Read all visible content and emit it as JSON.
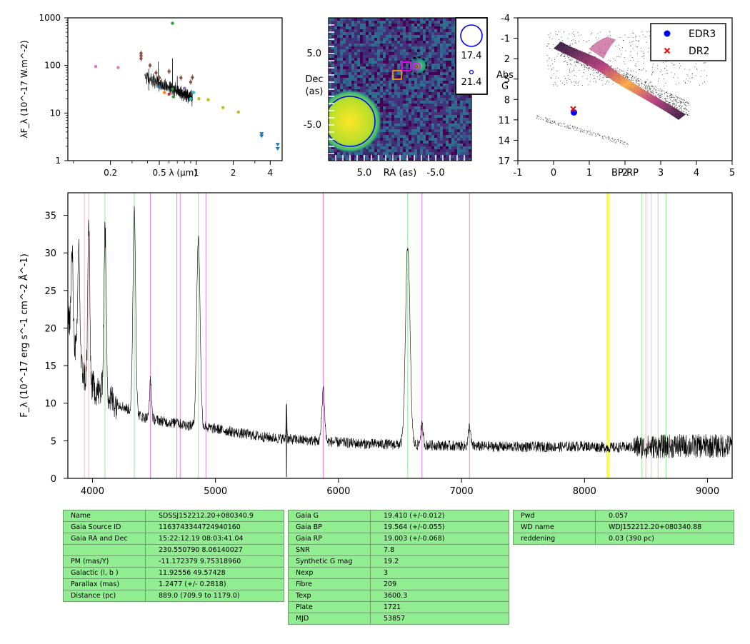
{
  "chart_data": [
    {
      "type": "scatter",
      "panel": "sed",
      "xlabel": "λ (μm)",
      "ylabel": "λF_λ (10^-17 W.m^-2)",
      "x_scale": "log",
      "y_scale": "log",
      "xlim": [
        0.09,
        5.0
      ],
      "ylim": [
        1,
        1000
      ],
      "x_ticks": [
        "0.2",
        "0.5",
        "1",
        "2",
        "4"
      ],
      "y_ticks": [
        "1",
        "10",
        "100",
        "1000"
      ],
      "points": [
        {
          "x": 0.152,
          "y": 95,
          "color": "#e377c2"
        },
        {
          "x": 0.231,
          "y": 90,
          "color": "#e377c2"
        },
        {
          "x": 0.355,
          "y": 180,
          "color": "#8c564b"
        },
        {
          "x": 0.355,
          "y": 160,
          "color": "#8c564b"
        },
        {
          "x": 0.355,
          "y": 140,
          "color": "#8c564b"
        },
        {
          "x": 0.42,
          "y": 100,
          "color": "#8c564b"
        },
        {
          "x": 0.47,
          "y": 70,
          "color": "#8c564b"
        },
        {
          "x": 0.5,
          "y": 55,
          "color": "#8c564b"
        },
        {
          "x": 0.5,
          "y": 35,
          "color": "#1f77b4"
        },
        {
          "x": 0.55,
          "y": 27,
          "color": "#ff7f0e"
        },
        {
          "x": 0.6,
          "y": 75,
          "color": "#8c564b"
        },
        {
          "x": 0.6,
          "y": 25,
          "color": "#d62728"
        },
        {
          "x": 0.64,
          "y": 770,
          "color": "#2ca02c"
        },
        {
          "x": 0.64,
          "y": 32,
          "color": "#2ca02c"
        },
        {
          "x": 0.65,
          "y": 22,
          "color": "#2ca02c"
        },
        {
          "x": 0.75,
          "y": 55,
          "color": "#8c564b"
        },
        {
          "x": 0.8,
          "y": 33,
          "color": "#9467bd"
        },
        {
          "x": 0.9,
          "y": 45,
          "color": "#8c564b"
        },
        {
          "x": 0.9,
          "y": 20,
          "color": "#17becf"
        },
        {
          "x": 0.93,
          "y": 56,
          "color": "#8c564b"
        },
        {
          "x": 0.95,
          "y": 27,
          "color": "#17becf"
        },
        {
          "x": 1.05,
          "y": 20,
          "color": "#bcbd22"
        },
        {
          "x": 1.25,
          "y": 19,
          "color": "#bcbd22"
        },
        {
          "x": 1.65,
          "y": 13,
          "color": "#bcbd22"
        },
        {
          "x": 2.2,
          "y": 10.5,
          "color": "#bcbd22"
        }
      ],
      "upper_limits": [
        {
          "x": 3.4,
          "y": 3.7,
          "color": "#1f77b4"
        },
        {
          "x": 3.4,
          "y": 3.3,
          "color": "#1f77b4"
        },
        {
          "x": 4.6,
          "y": 2.2,
          "color": "#1f77b4"
        },
        {
          "x": 4.6,
          "y": 1.8,
          "color": "#1f77b4"
        }
      ]
    },
    {
      "type": "heatmap",
      "panel": "image",
      "xlabel": "RA (as)",
      "ylabel": "Dec\n(as)",
      "xlim": [
        10.0,
        -10.0
      ],
      "ylim": [
        -10.0,
        10.0
      ],
      "x_ticks": [
        "5.0",
        "-5.0"
      ],
      "y_ticks": [
        "5.0",
        "-5.0"
      ],
      "legend": [
        "17.4",
        "21.4"
      ],
      "markers": [
        {
          "kind": "bright source",
          "x": 7.0,
          "y": -4.5,
          "color": "#fde725"
        },
        {
          "kind": "circle",
          "x": -3.3,
          "y": 3.3,
          "color": "#0000ff"
        },
        {
          "kind": "dashed circle",
          "x": -2.5,
          "y": 3.3,
          "color": "#000000"
        },
        {
          "kind": "square",
          "x": 0.4,
          "y": 2.0,
          "color": "#ffa500"
        },
        {
          "kind": "square",
          "x": -0.9,
          "y": 3.2,
          "color": "#ff00ff"
        },
        {
          "kind": "circle",
          "x": -2.3,
          "y": 3.2,
          "color": "#ff00ff"
        }
      ]
    },
    {
      "type": "scatter",
      "panel": "hr",
      "xlabel": "BP-RP",
      "ylabel": "Abs\nG",
      "xlim": [
        -1,
        5
      ],
      "ylim": [
        17,
        -4
      ],
      "x_ticks": [
        "-1",
        "0",
        "1",
        "2",
        "3",
        "4",
        "5"
      ],
      "y_ticks": [
        "-4",
        "-1",
        "2",
        "5",
        "8",
        "11",
        "14",
        "17"
      ],
      "legend": [
        "EDR3",
        "DR2"
      ],
      "series": [
        {
          "name": "EDR3",
          "color": "#0000ff",
          "x": [
            0.57
          ],
          "y": [
            9.9
          ]
        },
        {
          "name": "DR2",
          "color": "#ff0000",
          "x": [
            0.55
          ],
          "y": [
            9.4
          ]
        }
      ]
    },
    {
      "type": "line",
      "panel": "spectrum",
      "ylabel": "F_λ (10^-17 erg s^-1 cm^-2 Å^-1)",
      "xlim": [
        3800,
        9200
      ],
      "ylim": [
        0,
        38
      ],
      "x_ticks": [
        "4000",
        "5000",
        "6000",
        "7000",
        "8000",
        "9000"
      ],
      "y_ticks": [
        "0",
        "5",
        "10",
        "15",
        "20",
        "25",
        "30",
        "35"
      ],
      "continuum": [
        [
          3800,
          22
        ],
        [
          3850,
          18
        ],
        [
          3900,
          15
        ],
        [
          3950,
          13
        ],
        [
          4050,
          11.5
        ],
        [
          4200,
          10
        ],
        [
          4400,
          8.2
        ],
        [
          4600,
          7.5
        ],
        [
          4800,
          7
        ],
        [
          5000,
          6.6
        ],
        [
          5200,
          6
        ],
        [
          5400,
          5.5
        ],
        [
          5600,
          5.2
        ],
        [
          5800,
          5
        ],
        [
          6000,
          4.8
        ],
        [
          6200,
          4.6
        ],
        [
          6500,
          4.5
        ],
        [
          6800,
          4.4
        ],
        [
          7000,
          4.3
        ],
        [
          7400,
          4.2
        ],
        [
          7800,
          4.2
        ],
        [
          8000,
          4.3
        ],
        [
          8200,
          4.1
        ],
        [
          8500,
          4.2
        ],
        [
          8800,
          4.3
        ],
        [
          9200,
          4.3
        ]
      ],
      "emission_lines": [
        {
          "x": 3835,
          "peak": 30,
          "width": 8
        },
        {
          "x": 3889,
          "peak": 31,
          "width": 8
        },
        {
          "x": 3970,
          "peak": 34,
          "width": 8
        },
        {
          "x": 4102,
          "peak": 33,
          "width": 10
        },
        {
          "x": 4340,
          "peak": 36,
          "width": 11
        },
        {
          "x": 4472,
          "peak": 13,
          "width": 8
        },
        {
          "x": 4686,
          "peak": 8,
          "width": 8
        },
        {
          "x": 4861,
          "peak": 32,
          "width": 14
        },
        {
          "x": 4922,
          "peak": 7,
          "width": 6
        },
        {
          "x": 5577,
          "peak": 13,
          "width": 3
        },
        {
          "x": 5876,
          "peak": 12,
          "width": 11
        },
        {
          "x": 6563,
          "peak": 31,
          "width": 18
        },
        {
          "x": 6678,
          "peak": 7,
          "width": 10
        },
        {
          "x": 7065,
          "peak": 7,
          "width": 9
        }
      ],
      "reference_lines": [
        {
          "x": 3934,
          "color": "#ffb6c1"
        },
        {
          "x": 3968,
          "color": "#ffb6c1"
        },
        {
          "x": 4102,
          "color": "#90ee90"
        },
        {
          "x": 4340,
          "color": "#90ee90"
        },
        {
          "x": 4471,
          "color": "#ee82ee"
        },
        {
          "x": 4686,
          "color": "#ee82ee"
        },
        {
          "x": 4713,
          "color": "#ee82ee"
        },
        {
          "x": 4861,
          "color": "#90ee90"
        },
        {
          "x": 4922,
          "color": "#ee82ee"
        },
        {
          "x": 5876,
          "color": "#ee82ee"
        },
        {
          "x": 6563,
          "color": "#90ee90"
        },
        {
          "x": 6678,
          "color": "#ee82ee"
        },
        {
          "x": 7065,
          "color": "#ee82ee"
        },
        {
          "x": 8183,
          "color": "#ffff00"
        },
        {
          "x": 8195,
          "color": "#ffff00"
        },
        {
          "x": 8467,
          "color": "#90ee90"
        },
        {
          "x": 8498,
          "color": "#ffb6c1"
        },
        {
          "x": 8542,
          "color": "#ffb6c1"
        },
        {
          "x": 8598,
          "color": "#90ee90"
        },
        {
          "x": 8662,
          "color": "#90ee90"
        }
      ]
    }
  ],
  "tables": {
    "left": [
      [
        "Name",
        "SDSSJ152212.20+080340.9"
      ],
      [
        "Gaia Source ID",
        "1163743344724940160"
      ],
      [
        "Gaia RA and Dec",
        "15:22:12.19    08:03:41.04"
      ],
      [
        "",
        "230.550790    8.06140027"
      ],
      [
        "PM (mas/Y)",
        "-11.172379    9.75318960"
      ],
      [
        "Galactic (l, b )",
        "11.92556    49.57428"
      ],
      [
        "Parallax (mas)",
        "1.2477 (+/- 0.2818)"
      ],
      [
        "Distance (pc)",
        "889.0 (709.9 to 1179.0)"
      ]
    ],
    "middle": [
      [
        "Gaia G",
        "19.410 (+/-0.012)"
      ],
      [
        "Gaia BP",
        "19.564 (+/-0.055)"
      ],
      [
        "Gaia RP",
        "19.003 (+/-0.068)"
      ],
      [
        "SNR",
        "7.8"
      ],
      [
        "Synthetic G mag",
        "19.2"
      ],
      [
        "Nexp",
        "3"
      ],
      [
        "Fibre",
        "209"
      ],
      [
        "Texp",
        "3600.3"
      ],
      [
        "Plate",
        "1721"
      ],
      [
        "MJD",
        "53857"
      ]
    ],
    "right": [
      [
        "Pwd",
        "0.057"
      ],
      [
        "WD name",
        "WDJ152212.20+080340.88"
      ],
      [
        "reddening",
        "0.03 (390 pc)"
      ]
    ]
  }
}
